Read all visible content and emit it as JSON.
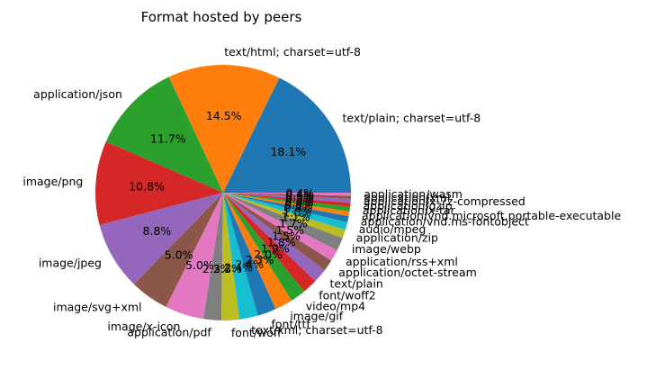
{
  "chart_data": {
    "type": "pie",
    "title": "Format hosted by peers",
    "start_angle_deg": 0,
    "direction": "counterclockwise",
    "slices": [
      {
        "label": "text/plain; charset=utf-8",
        "value": 18.1,
        "pct_label": "18.1%",
        "color": "#1f77b4"
      },
      {
        "label": "text/html; charset=utf-8",
        "value": 14.5,
        "pct_label": "14.5%",
        "color": "#ff7f0e"
      },
      {
        "label": "application/json",
        "value": 11.7,
        "pct_label": "11.7%",
        "color": "#2ca02c"
      },
      {
        "label": "image/png",
        "value": 10.8,
        "pct_label": "10.8%",
        "color": "#d62728"
      },
      {
        "label": "image/jpeg",
        "value": 8.8,
        "pct_label": "8.8%",
        "color": "#9467bd"
      },
      {
        "label": "image/svg+xml",
        "value": 5.0,
        "pct_label": "5.0%",
        "color": "#8c564b"
      },
      {
        "label": "image/x-icon",
        "value": 5.0,
        "pct_label": "5.0%",
        "color": "#e377c2"
      },
      {
        "label": "application/pdf",
        "value": 2.3,
        "pct_label": "2.3%",
        "color": "#7f7f7f"
      },
      {
        "label": "font/woff",
        "value": 2.3,
        "pct_label": "2.3%",
        "color": "#bcbd22"
      },
      {
        "label": "text/xml; charset=utf-8",
        "value": 2.4,
        "pct_label": "2.4%",
        "color": "#17becf"
      },
      {
        "label": "font/ttf",
        "value": 2.4,
        "pct_label": "2.4%",
        "color": "#1f77b4"
      },
      {
        "label": "image/gif",
        "value": 2.3,
        "pct_label": "2.3%",
        "color": "#ff7f0e"
      },
      {
        "label": "video/mp4",
        "value": 2.0,
        "pct_label": "2.0%",
        "color": "#2ca02c"
      },
      {
        "label": "font/woff2",
        "value": 1.9,
        "pct_label": "1.9%",
        "color": "#d62728"
      },
      {
        "label": "text/plain",
        "value": 1.8,
        "pct_label": "1.8%",
        "color": "#9467bd"
      },
      {
        "label": "application/octet-stream",
        "value": 1.5,
        "pct_label": "1.5%",
        "color": "#8c564b"
      },
      {
        "label": "application/rss+xml",
        "value": 1.5,
        "pct_label": "1.5%",
        "color": "#e377c2"
      },
      {
        "label": "image/webp",
        "value": 1.7,
        "pct_label": "1.7%",
        "color": "#7f7f7f"
      },
      {
        "label": "application/zip",
        "value": 1.1,
        "pct_label": "1.1%",
        "color": "#bcbd22"
      },
      {
        "label": "audio/mpeg",
        "value": 1.0,
        "pct_label": "1.0%",
        "color": "#17becf"
      },
      {
        "label": "application/vnd.ms-fontobject",
        "value": 0.8,
        "pct_label": "0.8%",
        "color": "#1f77b4"
      },
      {
        "label": "application/vnd.microsoft.portable-executable",
        "value": 0.6,
        "pct_label": "0.6%",
        "color": "#ff7f0e"
      },
      {
        "label": "application/x-tar",
        "value": 0.6,
        "pct_label": "0.6%",
        "color": "#2ca02c"
      },
      {
        "label": "application/gzip",
        "value": 0.5,
        "pct_label": "0.5%",
        "color": "#d62728"
      },
      {
        "label": "application/x-7z-compressed",
        "value": 0.5,
        "pct_label": "0.5%",
        "color": "#9467bd"
      },
      {
        "label": "application/xml",
        "value": 0.4,
        "pct_label": "0.4%",
        "color": "#8c564b"
      },
      {
        "label": "application/wasm",
        "value": 0.4,
        "pct_label": "0.4%",
        "color": "#e377c2"
      }
    ]
  }
}
